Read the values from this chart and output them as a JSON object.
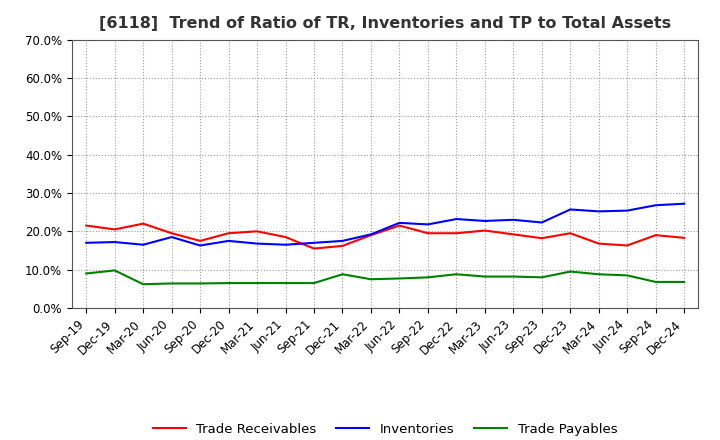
{
  "title": "[6118]  Trend of Ratio of TR, Inventories and TP to Total Assets",
  "x_labels": [
    "Sep-19",
    "Dec-19",
    "Mar-20",
    "Jun-20",
    "Sep-20",
    "Dec-20",
    "Mar-21",
    "Jun-21",
    "Sep-21",
    "Dec-21",
    "Mar-22",
    "Jun-22",
    "Sep-22",
    "Dec-22",
    "Mar-23",
    "Jun-23",
    "Sep-23",
    "Dec-23",
    "Mar-24",
    "Jun-24",
    "Sep-24",
    "Dec-24"
  ],
  "trade_receivables": [
    0.215,
    0.205,
    0.22,
    0.195,
    0.175,
    0.195,
    0.2,
    0.185,
    0.155,
    0.162,
    0.19,
    0.215,
    0.195,
    0.195,
    0.202,
    0.192,
    0.182,
    0.195,
    0.168,
    0.163,
    0.19,
    0.183
  ],
  "inventories": [
    0.17,
    0.172,
    0.165,
    0.185,
    0.163,
    0.175,
    0.168,
    0.165,
    0.17,
    0.175,
    0.192,
    0.222,
    0.218,
    0.232,
    0.227,
    0.23,
    0.223,
    0.257,
    0.252,
    0.254,
    0.268,
    0.272
  ],
  "trade_payables": [
    0.09,
    0.098,
    0.062,
    0.064,
    0.064,
    0.065,
    0.065,
    0.065,
    0.065,
    0.088,
    0.075,
    0.077,
    0.08,
    0.088,
    0.082,
    0.082,
    0.08,
    0.095,
    0.088,
    0.085,
    0.068,
    0.068
  ],
  "line_colors": {
    "trade_receivables": "#ff0000",
    "inventories": "#0000ff",
    "trade_payables": "#008000"
  },
  "legend_labels": [
    "Trade Receivables",
    "Inventories",
    "Trade Payables"
  ],
  "ylim": [
    0.0,
    0.7
  ],
  "yticks": [
    0.0,
    0.1,
    0.2,
    0.3,
    0.4,
    0.5,
    0.6,
    0.7
  ],
  "background_color": "#ffffff",
  "grid_color": "#999999",
  "title_fontsize": 11.5,
  "title_color": "#333333",
  "tick_fontsize": 8.5,
  "legend_fontsize": 9.5
}
